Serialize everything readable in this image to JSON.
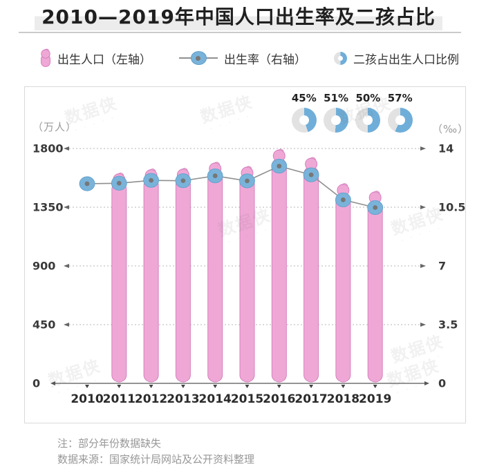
{
  "title": "2010—2019年中国人口出生率及二孩占比",
  "legend": {
    "births_label": "出生人口（左轴）",
    "rate_label": "出生率（右轴）",
    "second_child_label": "二孩占出生人口比例"
  },
  "axes": {
    "left_unit": "（万人）",
    "right_unit": "（‰）",
    "left_ticks": [
      1800,
      1350,
      900,
      450,
      0
    ],
    "right_ticks": [
      14,
      10.5,
      7,
      3.5,
      0
    ]
  },
  "notes": {
    "note": "注：部分年份数据缺失",
    "source": "数据来源：国家统计局网站及公开资料整理"
  },
  "watermark": {
    "text": "数据侠"
  },
  "colors": {
    "bar_fill": "#EFA8D6",
    "bar_stroke": "#D67FBE",
    "dot_fill": "#79B3DA",
    "dot_edge": "#5E9DC9",
    "dot_core": "#777777",
    "line": "#8F8F8F",
    "donut_blue": "#6FAED9",
    "donut_gray": "#E2E2E2",
    "grid": "#B5B5B5",
    "axis": "#555555",
    "tick": "#3A3A3A",
    "year": "#2B2B2B",
    "note": "#979797"
  },
  "chart_data": {
    "type": "bar",
    "title": "2010—2019年中国人口出生率及二孩占比",
    "categories": [
      "2010",
      "2011",
      "2012",
      "2013",
      "2014",
      "2015",
      "2016",
      "2017",
      "2018",
      "2019"
    ],
    "series": [
      {
        "name": "出生人口（左轴）",
        "type": "bar",
        "axis": "left",
        "unit": "万人",
        "values": [
          null,
          1604,
          1635,
          1640,
          1687,
          1655,
          1786,
          1723,
          1523,
          1465
        ]
      },
      {
        "name": "出生率（右轴）",
        "type": "line",
        "axis": "right",
        "unit": "‰",
        "values": [
          11.9,
          11.93,
          12.1,
          12.08,
          12.37,
          12.07,
          12.95,
          12.43,
          10.94,
          10.48
        ]
      },
      {
        "name": "二孩占出生人口比例",
        "type": "donut",
        "unit": "%",
        "values": [
          null,
          null,
          null,
          null,
          null,
          null,
          45,
          51,
          50,
          57
        ]
      }
    ],
    "ylim_left": [
      0,
      1800
    ],
    "ylim_right": [
      0,
      14
    ],
    "left_tick_step": 450,
    "right_tick_step": 3.5,
    "grid": "dashed horizontal with outward arrows",
    "legend_position": "top",
    "annotations": [
      "45%",
      "51%",
      "50%",
      "57%"
    ],
    "missing_data_note": "注：部分年份数据缺失"
  }
}
